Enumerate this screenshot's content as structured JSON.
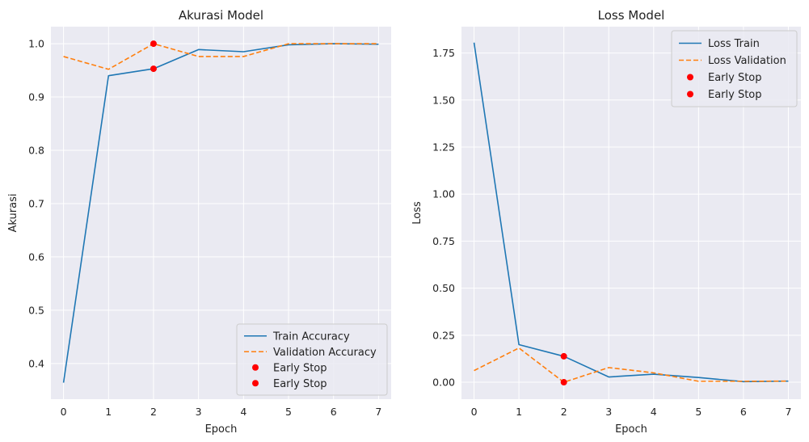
{
  "colors": {
    "background": "#ffffff",
    "plot_bg": "#eaeaf2",
    "grid": "#ffffff",
    "train": "#1f77b4",
    "validation": "#ff7f0e",
    "early_stop": "#ff0000"
  },
  "chart_data": [
    {
      "type": "line",
      "title": "Akurasi Model",
      "xlabel": "Epoch",
      "ylabel": "Akurasi",
      "x": [
        0,
        1,
        2,
        3,
        4,
        5,
        6,
        7
      ],
      "xlim": [
        -0.28,
        7.28
      ],
      "ylim": [
        0.333,
        1.032
      ],
      "xticks": [
        0,
        1,
        2,
        3,
        4,
        5,
        6,
        7
      ],
      "yticks": [
        0.4,
        0.5,
        0.6,
        0.7,
        0.8,
        0.9,
        1.0
      ],
      "ytick_labels": [
        "0.4",
        "0.5",
        "0.6",
        "0.7",
        "0.8",
        "0.9",
        "1.0"
      ],
      "grid": true,
      "legend_position": "lower-right",
      "series": [
        {
          "name": "Train Accuracy",
          "style": "solid",
          "color": "#1f77b4",
          "values": [
            0.364,
            0.94,
            0.953,
            0.989,
            0.985,
            0.998,
            1.0,
            0.999
          ]
        },
        {
          "name": "Validation Accuracy",
          "style": "dashed",
          "color": "#ff7f0e",
          "values": [
            0.976,
            0.952,
            1.0,
            0.976,
            0.976,
            1.0,
            1.0,
            1.0
          ]
        }
      ],
      "markers": [
        {
          "name": "Early Stop",
          "x": 2,
          "y": 0.953,
          "color": "#ff0000"
        },
        {
          "name": "Early Stop",
          "x": 2,
          "y": 1.0,
          "color": "#ff0000"
        }
      ]
    },
    {
      "type": "line",
      "title": "Loss Model",
      "xlabel": "Epoch",
      "ylabel": "Loss",
      "x": [
        0,
        1,
        2,
        3,
        4,
        5,
        6,
        7
      ],
      "xlim": [
        -0.28,
        7.28
      ],
      "ylim": [
        -0.09,
        1.89
      ],
      "xticks": [
        0,
        1,
        2,
        3,
        4,
        5,
        6,
        7
      ],
      "yticks": [
        0.0,
        0.25,
        0.5,
        0.75,
        1.0,
        1.25,
        1.5,
        1.75
      ],
      "ytick_labels": [
        "0.00",
        "0.25",
        "0.50",
        "0.75",
        "1.00",
        "1.25",
        "1.50",
        "1.75"
      ],
      "grid": true,
      "legend_position": "upper-right",
      "series": [
        {
          "name": "Loss Train",
          "style": "solid",
          "color": "#1f77b4",
          "values": [
            1.805,
            0.2,
            0.138,
            0.028,
            0.043,
            0.025,
            0.003,
            0.006
          ]
        },
        {
          "name": "Loss Validation",
          "style": "dashed",
          "color": "#ff7f0e",
          "values": [
            0.062,
            0.182,
            0.0,
            0.078,
            0.05,
            0.005,
            0.005,
            0.006
          ]
        }
      ],
      "markers": [
        {
          "name": "Early Stop",
          "x": 2,
          "y": 0.138,
          "color": "#ff0000"
        },
        {
          "name": "Early Stop",
          "x": 2,
          "y": 0.0,
          "color": "#ff0000"
        }
      ]
    }
  ]
}
